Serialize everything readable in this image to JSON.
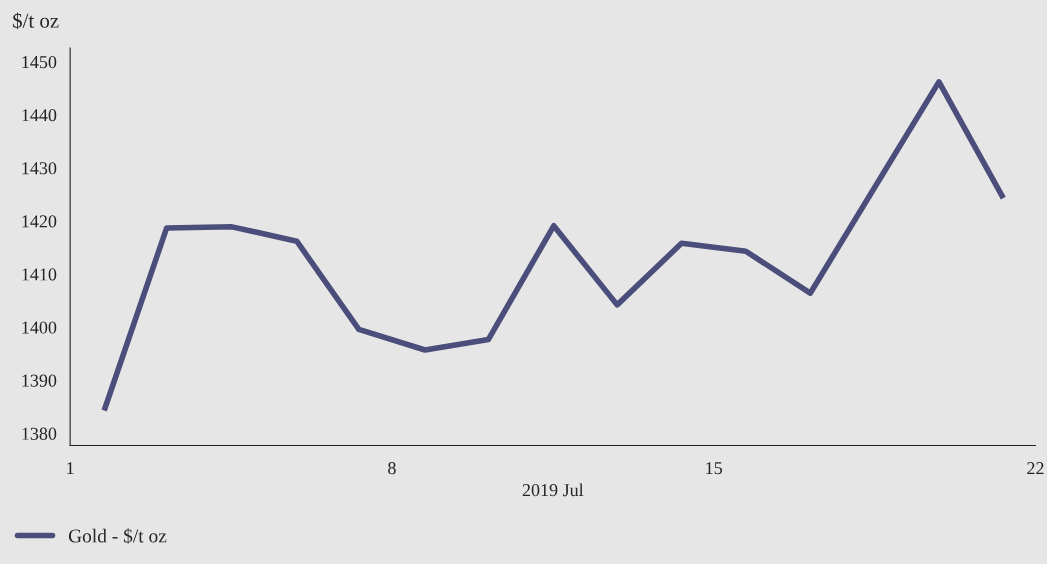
{
  "chart_data": {
    "type": "line",
    "ylabel": "$/t oz",
    "xlabel": "2019 Jul",
    "x": [
      1.74,
      3.1,
      4.52,
      5.93,
      7.28,
      8.72,
      10.1,
      11.52,
      12.9,
      14.3,
      15.7,
      17.1,
      18.5,
      19.9,
      21.3
    ],
    "series": [
      {
        "name": "Gold - $/t oz",
        "color": "#4b4d7a",
        "values": [
          1384.3,
          1418.7,
          1418.9,
          1416.2,
          1399.6,
          1395.7,
          1397.7,
          1419.1,
          1404.2,
          1415.8,
          1414.3,
          1406.4,
          1426.3,
          1446.2,
          1424.3
        ]
      }
    ],
    "xlim": [
      1,
      22
    ],
    "xticks": [
      1,
      8,
      15,
      22
    ],
    "ylim": [
      1377.7,
      1452.6
    ],
    "yticks": [
      1380,
      1390,
      1400,
      1410,
      1420,
      1430,
      1440,
      1450
    ],
    "grid": false,
    "legend": "bottom left",
    "marker": "none",
    "line_style": "solid"
  }
}
